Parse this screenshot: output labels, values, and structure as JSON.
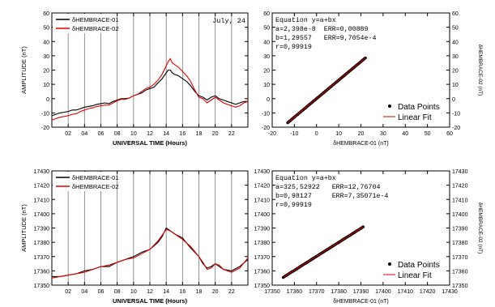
{
  "chart_data": [
    {
      "id": "dh-time-top",
      "type": "line",
      "title": "",
      "annotation": "July, 24",
      "xlabel": "UNIVERSAL TIME (Hours)",
      "ylabel": "AMPLITUDE (nT)",
      "xlim": [
        0,
        24
      ],
      "ylim": [
        -20,
        60
      ],
      "x_ticks": [
        2,
        4,
        6,
        8,
        10,
        12,
        14,
        16,
        18,
        20,
        22
      ],
      "x_tick_labels": [
        "02",
        "04",
        "06",
        "08",
        "10",
        "12",
        "14",
        "16",
        "18",
        "20",
        "22"
      ],
      "y_ticks": [
        -20,
        -10,
        0,
        10,
        20,
        30,
        40,
        50,
        60
      ],
      "y_tick_labels": [
        "-20",
        "-10",
        "0",
        "10",
        "20",
        "30",
        "40",
        "50",
        "60"
      ],
      "vertical_lines_at": [
        2,
        4,
        6,
        8,
        10,
        12,
        14,
        16,
        18,
        20,
        22
      ],
      "legend_position": "top-left",
      "series": [
        {
          "name": "δHEMBRACE-01",
          "color": "#000000",
          "x": [
            0,
            0.5,
            1,
            1.5,
            2,
            2.5,
            3,
            3.5,
            4,
            4.5,
            5,
            5.5,
            6,
            6.5,
            7,
            7.5,
            8,
            8.5,
            9,
            9.5,
            10,
            10.5,
            11,
            11.5,
            12,
            12.5,
            13,
            13.5,
            14,
            14.25,
            14.5,
            14.75,
            15,
            15.5,
            16,
            16.5,
            17,
            17.5,
            18,
            18.5,
            19,
            19.5,
            20,
            20.5,
            21,
            21.5,
            22,
            22.5,
            23,
            23.5,
            24
          ],
          "values": [
            -12,
            -11,
            -10,
            -9.5,
            -9,
            -8,
            -8,
            -7,
            -6,
            -5.5,
            -5,
            -4,
            -3.5,
            -3,
            -3.5,
            -2,
            -1,
            0,
            0,
            0.5,
            2,
            3,
            4,
            6,
            7,
            8,
            11,
            14,
            18,
            20,
            20,
            18,
            17,
            16,
            14,
            12,
            9,
            5,
            2,
            1,
            -1,
            1,
            2,
            0,
            -1,
            -2,
            -3,
            -4,
            -3,
            -2,
            -2
          ]
        },
        {
          "name": "δHEMBRACE-02",
          "color": "#e00000",
          "x": [
            0,
            0.5,
            1,
            1.5,
            2,
            2.5,
            3,
            3.5,
            4,
            4.5,
            5,
            5.5,
            6,
            6.5,
            7,
            7.5,
            8,
            8.5,
            9,
            9.5,
            10,
            10.5,
            11,
            11.5,
            12,
            12.5,
            13,
            13.5,
            14,
            14.25,
            14.5,
            14.75,
            15,
            15.5,
            16,
            16.5,
            17,
            17.5,
            18,
            18.5,
            19,
            19.5,
            20,
            20.5,
            21,
            21.5,
            22,
            22.5,
            23,
            23.5,
            24
          ],
          "values": [
            -15,
            -14,
            -13,
            -12.5,
            -12,
            -11,
            -10.5,
            -9,
            -8,
            -7,
            -6.5,
            -5.5,
            -5,
            -4.5,
            -4.5,
            -3,
            -1.5,
            -0.5,
            -0.5,
            0.5,
            2,
            3,
            5,
            7,
            8,
            10,
            13,
            17,
            23,
            26,
            28,
            25,
            24,
            22,
            19,
            16,
            12,
            6,
            1,
            0,
            -3,
            -1,
            1,
            -1,
            -3,
            -4,
            -5,
            -6,
            -5,
            -3,
            -2
          ]
        }
      ]
    },
    {
      "id": "dh-fit-top",
      "type": "scatter",
      "title": "",
      "xlabel": "δHEMBRACE-01 (nT)",
      "ylabel": "δHEMBRACE-02 (nT)",
      "xlim": [
        -20,
        60
      ],
      "ylim": [
        -20,
        60
      ],
      "x_ticks": [
        -20,
        -10,
        0,
        10,
        20,
        30,
        40,
        50,
        60
      ],
      "x_tick_labels": [
        "-20",
        "-10",
        "0",
        "10",
        "20",
        "30",
        "40",
        "50",
        "60"
      ],
      "y_ticks": [
        -20,
        -10,
        0,
        10,
        20,
        30,
        40,
        50,
        60
      ],
      "y_tick_labels": [
        "-20",
        "-10",
        "0",
        "10",
        "20",
        "30",
        "40",
        "50",
        "60"
      ],
      "equation_lines": [
        "Equation y=a+bx",
        "a=2,398e-8  ERR=0,00889",
        "b=1,29557   ERR=9,7054e-4",
        "r=0,99919"
      ],
      "legend_position": "bottom-right",
      "legend": [
        "Data Points",
        "Linear Fit"
      ],
      "data_range_x": [
        -13,
        22
      ],
      "fit": {
        "a": 2.398e-08,
        "b": 1.29557
      }
    },
    {
      "id": "h-time-bottom",
      "type": "line",
      "title": "",
      "xlabel": "UNIVERSAL TIME (Hours)",
      "ylabel": "AMPLITUDE (nT)",
      "xlim": [
        0,
        24
      ],
      "ylim": [
        17350,
        17430
      ],
      "x_ticks": [
        2,
        4,
        6,
        8,
        10,
        12,
        14,
        16,
        18,
        20,
        22
      ],
      "x_tick_labels": [
        "02",
        "04",
        "06",
        "08",
        "10",
        "12",
        "14",
        "16",
        "18",
        "20",
        "22"
      ],
      "y_ticks": [
        17350,
        17360,
        17370,
        17380,
        17390,
        17400,
        17410,
        17420,
        17430
      ],
      "y_tick_labels": [
        "17350",
        "17360",
        "17370",
        "17380",
        "17390",
        "17400",
        "17410",
        "17420",
        "17430"
      ],
      "vertical_lines_at": [
        2,
        4,
        6,
        8,
        10,
        12,
        14,
        16,
        18,
        20,
        22
      ],
      "legend_position": "top-left",
      "series": [
        {
          "name": "δHEMBRACE-01",
          "color": "#000000",
          "x": [
            0,
            1,
            2,
            3,
            4,
            5,
            6,
            7,
            8,
            9,
            10,
            11,
            12,
            13,
            13.5,
            14,
            14.5,
            15,
            16,
            17,
            18,
            18.5,
            19,
            19.5,
            20,
            20.5,
            21,
            22,
            23,
            24
          ],
          "values": [
            17356,
            17356,
            17357,
            17358,
            17360,
            17361,
            17363,
            17363,
            17366,
            17368,
            17370,
            17373,
            17375,
            17380,
            17384,
            17390,
            17388,
            17386,
            17383,
            17376,
            17370,
            17365,
            17362,
            17363,
            17365,
            17363,
            17361,
            17360,
            17363,
            17368
          ]
        },
        {
          "name": "δHEMBRACE-02",
          "color": "#e00000",
          "x": [
            0,
            1,
            2,
            3,
            4,
            5,
            6,
            7,
            8,
            9,
            10,
            11,
            12,
            13,
            13.5,
            14,
            14.5,
            15,
            16,
            17,
            18,
            18.5,
            19,
            19.5,
            20,
            20.5,
            21,
            22,
            23,
            24
          ],
          "values": [
            17355,
            17356,
            17357,
            17358,
            17359,
            17361,
            17363,
            17364,
            17366,
            17368,
            17369,
            17372,
            17375,
            17381,
            17385,
            17389,
            17388,
            17386,
            17382,
            17377,
            17370,
            17366,
            17361,
            17362,
            17365,
            17364,
            17361,
            17359,
            17362,
            17369
          ]
        }
      ]
    },
    {
      "id": "h-fit-bottom",
      "type": "scatter",
      "title": "",
      "xlabel": "δHEMBRACE-01 (nT)",
      "ylabel": "δHEMBRACE-02 (nT)",
      "xlim": [
        17350,
        17430
      ],
      "ylim": [
        17350,
        17430
      ],
      "x_ticks": [
        17350,
        17360,
        17370,
        17380,
        17390,
        17400,
        17410,
        17420,
        17430
      ],
      "x_tick_labels": [
        "17350",
        "17360",
        "17370",
        "17380",
        "17390",
        "17400",
        "17410",
        "17420",
        "17430"
      ],
      "y_ticks": [
        17350,
        17360,
        17370,
        17380,
        17390,
        17400,
        17410,
        17420,
        17430
      ],
      "y_tick_labels": [
        "17350",
        "17360",
        "17370",
        "17380",
        "17390",
        "17400",
        "17410",
        "17420",
        "17430"
      ],
      "equation_lines": [
        "Equation y=a+bx",
        "a=325,52922   ERR=12,76704",
        "b=0,98127     ERR=7,35071e-4",
        "r=0,99919"
      ],
      "legend_position": "bottom-right",
      "legend": [
        "Data Points",
        "Linear Fit"
      ],
      "data_range_x": [
        17355,
        17391
      ],
      "fit": {
        "a": 325.52922,
        "b": 0.98127
      }
    }
  ]
}
